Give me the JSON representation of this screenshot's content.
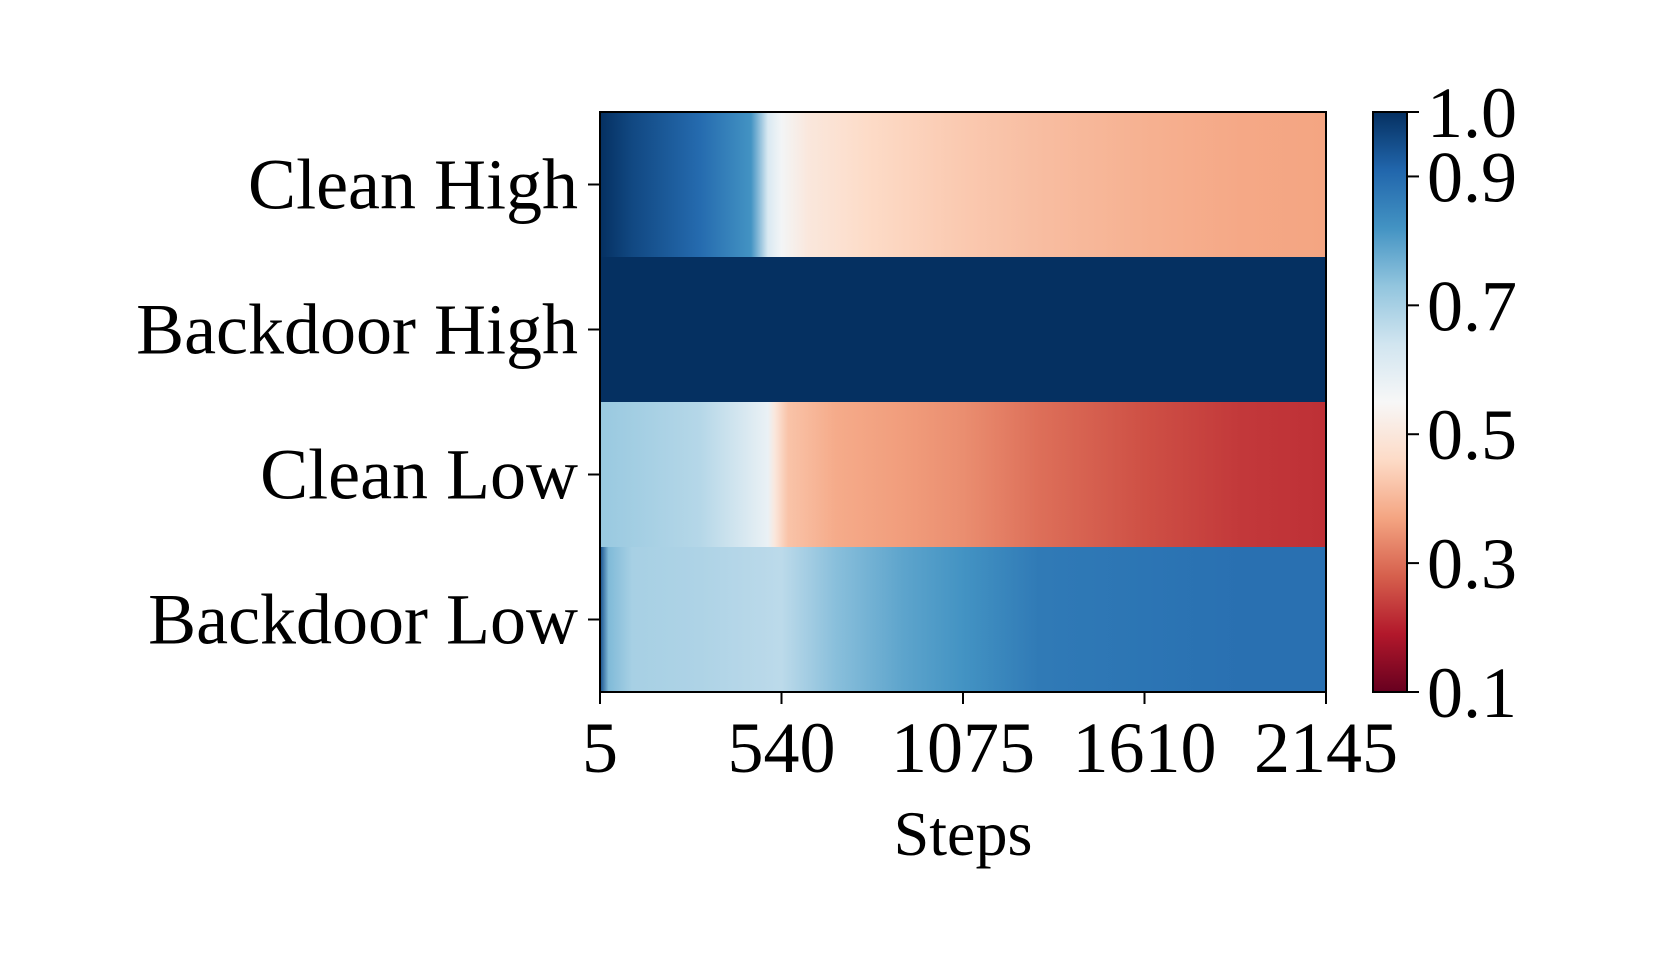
{
  "chart_data": {
    "type": "heatmap",
    "title": "",
    "xlabel": "Steps",
    "ylabel": "",
    "rows": [
      "Clean High",
      "Backdoor High",
      "Clean Low",
      "Backdoor Low"
    ],
    "xlim": [
      5,
      2145
    ],
    "x_ticks": [
      5,
      540,
      1075,
      1610,
      2145
    ],
    "x_tick_labels": [
      "5",
      "540",
      "1075",
      "1610",
      "2145"
    ],
    "colormap": "RdBu",
    "colorbar": {
      "range": [
        0.1,
        1.0
      ],
      "ticks": [
        0.1,
        0.3,
        0.5,
        0.7,
        0.9,
        1.0
      ],
      "tick_labels": [
        "0.1",
        "0.3",
        "0.5",
        "0.7",
        "0.9",
        "1.0"
      ],
      "colors": [
        "#67001f",
        "#b2182b",
        "#d6604d",
        "#f4a582",
        "#fddbc7",
        "#f7f7f7",
        "#d1e5f0",
        "#92c5de",
        "#4393c3",
        "#2166ac",
        "#053061"
      ]
    },
    "series": [
      {
        "name": "Clean High",
        "x": [
          5,
          100,
          300,
          450,
          500,
          540,
          620,
          800,
          1075,
          1300,
          1610,
          1900,
          2145
        ],
        "values": [
          1.0,
          0.96,
          0.9,
          0.82,
          0.62,
          0.56,
          0.5,
          0.46,
          0.43,
          0.41,
          0.39,
          0.375,
          0.37
        ]
      },
      {
        "name": "Backdoor High",
        "x": [
          5,
          1075,
          2145
        ],
        "values": [
          1.0,
          1.0,
          1.0
        ]
      },
      {
        "name": "Clean Low",
        "x": [
          5,
          300,
          500,
          520,
          560,
          700,
          900,
          1075,
          1300,
          1610,
          1900,
          2145
        ],
        "values": [
          0.72,
          0.68,
          0.58,
          0.5,
          0.42,
          0.38,
          0.36,
          0.34,
          0.3,
          0.26,
          0.23,
          0.22
        ]
      },
      {
        "name": "Backdoor Low",
        "x": [
          5,
          30,
          100,
          300,
          540,
          700,
          900,
          1075,
          1300,
          1610,
          1900,
          2145
        ],
        "values": [
          0.95,
          0.75,
          0.7,
          0.69,
          0.67,
          0.74,
          0.79,
          0.82,
          0.87,
          0.88,
          0.89,
          0.89
        ]
      }
    ]
  }
}
